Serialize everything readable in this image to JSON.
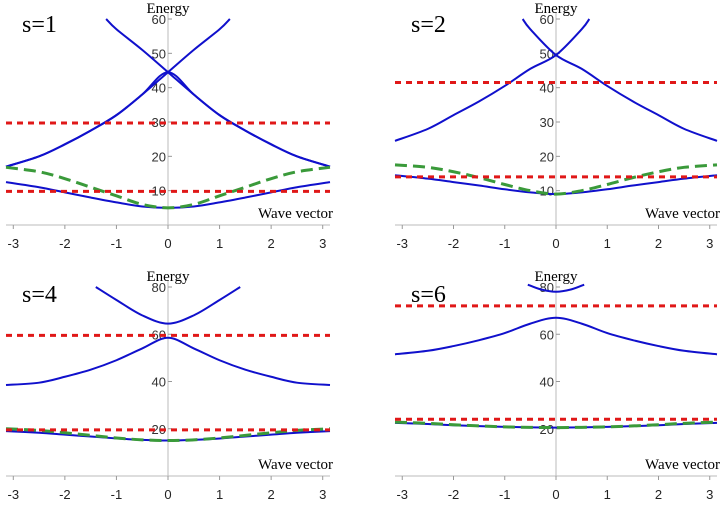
{
  "chart_data": [
    {
      "type": "line",
      "title": "s=1",
      "xlabel": "Wave vector",
      "ylabel": "Energy",
      "xlim": [
        -3.1416,
        3.1416
      ],
      "ylim": [
        0,
        60
      ],
      "x_ticks": [
        -3,
        -2,
        -1,
        0,
        1,
        2,
        3
      ],
      "y_ticks": [
        10,
        20,
        30,
        40,
        50,
        60
      ],
      "series": [
        {
          "style": "solid",
          "color": "#1010cc",
          "x": [
            -3.1416,
            -2.5,
            -2,
            -1.5,
            -1,
            -0.5,
            0,
            0.5,
            1,
            1.5,
            2,
            2.5,
            3.1416
          ],
          "y": [
            12.5,
            11,
            9.5,
            8,
            6.6,
            5.4,
            5,
            5.4,
            6.6,
            8,
            9.5,
            11,
            12.5
          ]
        },
        {
          "style": "solid",
          "color": "#1010cc",
          "x": [
            -3.1416,
            -2.5,
            -2,
            -1.5,
            -1,
            -0.5,
            0,
            0.5,
            1,
            1.5,
            2,
            2.5,
            3.1416
          ],
          "y": [
            17,
            20,
            23.5,
            27.5,
            32,
            38,
            44.5,
            38,
            32,
            27.5,
            23.5,
            20,
            17
          ]
        },
        {
          "style": "solid",
          "color": "#1010cc",
          "x": [
            -1.2,
            -1,
            -0.5,
            0,
            0.5,
            1,
            1.5,
            2,
            2.5,
            3.1416
          ],
          "y": [
            60,
            57,
            51,
            44.5,
            38,
            32,
            27.5,
            23.5,
            20,
            17
          ]
        },
        {
          "style": "solid",
          "color": "#1010cc",
          "x": [
            -3.1416,
            -2.5,
            -2,
            -1.5,
            -1,
            -0.5,
            0,
            0.5,
            1,
            1.2
          ],
          "y": [
            17,
            20,
            23.5,
            27.5,
            32,
            38,
            44.5,
            51,
            57,
            60
          ]
        },
        {
          "style": "dashed",
          "color": "#3a9a3a",
          "x": [
            -3.1416,
            -2.5,
            -2,
            -1.5,
            -1,
            -0.5,
            0,
            0.5,
            1,
            1.5,
            2,
            2.5,
            3.1416
          ],
          "y": [
            16.8,
            15.5,
            13.5,
            11,
            8.5,
            6,
            5,
            6,
            8.5,
            11,
            13.5,
            15.5,
            16.8
          ]
        },
        {
          "style": "dotted",
          "color": "#e01818",
          "x": [
            -3.1416,
            3.1416
          ],
          "y": [
            29.7,
            29.7
          ]
        },
        {
          "style": "dotted",
          "color": "#e01818",
          "x": [
            -3.1416,
            3.1416
          ],
          "y": [
            9.8,
            9.8
          ]
        }
      ]
    },
    {
      "type": "line",
      "title": "s=2",
      "xlabel": "Wave vector",
      "ylabel": "Energy",
      "xlim": [
        -3.1416,
        3.1416
      ],
      "ylim": [
        0,
        60
      ],
      "x_ticks": [
        -3,
        -2,
        -1,
        0,
        1,
        2,
        3
      ],
      "y_ticks": [
        10,
        20,
        30,
        40,
        50,
        60
      ],
      "series": [
        {
          "style": "solid",
          "color": "#1010cc",
          "x": [
            -3.1416,
            -2.5,
            -2,
            -1.5,
            -1,
            -0.5,
            0,
            0.5,
            1,
            1.5,
            2,
            2.5,
            3.1416
          ],
          "y": [
            14.5,
            13.5,
            12.5,
            11.5,
            10.4,
            9.5,
            9,
            9.5,
            10.4,
            11.5,
            12.5,
            13.5,
            14.5
          ]
        },
        {
          "style": "solid",
          "color": "#1010cc",
          "x": [
            -3.1416,
            -2.5,
            -2,
            -1.5,
            -1,
            -0.5,
            0,
            0.5,
            0.65
          ],
          "y": [
            24.5,
            28,
            32,
            36,
            40.5,
            45.5,
            49.5,
            57,
            60
          ]
        },
        {
          "style": "solid",
          "color": "#1010cc",
          "x": [
            -0.65,
            -0.5,
            0,
            0.5,
            1,
            1.5,
            2,
            2.5,
            3.1416
          ],
          "y": [
            60,
            57,
            49.5,
            45.5,
            40.5,
            36,
            32,
            28,
            24.5
          ]
        },
        {
          "style": "dashed",
          "color": "#3a9a3a",
          "x": [
            -3.1416,
            -2.5,
            -2,
            -1.5,
            -1,
            -0.5,
            0,
            0.5,
            1,
            1.5,
            2,
            2.5,
            3.1416
          ],
          "y": [
            17.5,
            16.8,
            15.5,
            13.8,
            11.8,
            10,
            9,
            10,
            11.8,
            13.8,
            15.5,
            16.8,
            17.5
          ]
        },
        {
          "style": "dotted",
          "color": "#e01818",
          "x": [
            -3.1416,
            3.1416
          ],
          "y": [
            41.5,
            41.5
          ]
        },
        {
          "style": "dotted",
          "color": "#e01818",
          "x": [
            -3.1416,
            3.1416
          ],
          "y": [
            14,
            14
          ]
        }
      ]
    },
    {
      "type": "line",
      "title": "s=4",
      "xlabel": "Wave vector",
      "ylabel": "Energy",
      "xlim": [
        -3.1416,
        3.1416
      ],
      "ylim": [
        0,
        80
      ],
      "x_ticks": [
        -3,
        -2,
        -1,
        0,
        1,
        2,
        3
      ],
      "y_ticks": [
        20,
        40,
        60,
        80
      ],
      "series": [
        {
          "style": "solid",
          "color": "#1010cc",
          "x": [
            -3.1416,
            -2.5,
            -2,
            -1.5,
            -1,
            -0.5,
            0,
            0.5,
            1,
            1.5,
            2,
            2.5,
            3.1416
          ],
          "y": [
            19,
            18.3,
            17.5,
            16.7,
            15.9,
            15.3,
            15,
            15.3,
            15.9,
            16.7,
            17.5,
            18.3,
            19
          ]
        },
        {
          "style": "solid",
          "color": "#1010cc",
          "x": [
            -3.1416,
            -2.5,
            -2,
            -1.5,
            -1,
            -0.5,
            0,
            0.5,
            1,
            1.5,
            2,
            2.5,
            3.1416
          ],
          "y": [
            38.5,
            39.5,
            42,
            45,
            49,
            54,
            58.5,
            54,
            49,
            45,
            42,
            39.5,
            38.5
          ]
        },
        {
          "style": "solid",
          "color": "#1010cc",
          "x": [
            -1.4,
            -1,
            -0.5,
            0,
            0.5,
            1,
            1.4
          ],
          "y": [
            80,
            74.5,
            68,
            64.5,
            68,
            74.5,
            80
          ]
        },
        {
          "style": "dashed",
          "color": "#3a9a3a",
          "x": [
            -3.1416,
            -2.5,
            -2,
            -1.5,
            -1,
            -0.5,
            0,
            0.5,
            1,
            1.5,
            2,
            2.5,
            3.1416
          ],
          "y": [
            20,
            19.3,
            18.3,
            17.2,
            16.1,
            15.3,
            15,
            15.3,
            16.1,
            17.2,
            18.3,
            19.3,
            20
          ]
        },
        {
          "style": "dotted",
          "color": "#e01818",
          "x": [
            -3.1416,
            3.1416
          ],
          "y": [
            59.5,
            59.5
          ]
        },
        {
          "style": "dotted",
          "color": "#e01818",
          "x": [
            -3.1416,
            3.1416
          ],
          "y": [
            19.5,
            19.5
          ]
        }
      ]
    },
    {
      "type": "line",
      "title": "s=6",
      "xlabel": "Wave vector",
      "ylabel": "Energy",
      "xlim": [
        -3.1416,
        3.1416
      ],
      "ylim": [
        0,
        80
      ],
      "x_ticks": [
        -3,
        -2,
        -1,
        0,
        1,
        2,
        3
      ],
      "y_ticks": [
        20,
        40,
        60,
        80
      ],
      "series": [
        {
          "style": "solid",
          "color": "#1010cc",
          "x": [
            -3.1416,
            -2.5,
            -2,
            -1.5,
            -1,
            -0.5,
            0,
            0.5,
            1,
            1.5,
            2,
            2.5,
            3.1416
          ],
          "y": [
            22.5,
            22,
            21.5,
            21.1,
            20.8,
            20.6,
            20.5,
            20.6,
            20.8,
            21.1,
            21.5,
            22,
            22.5
          ]
        },
        {
          "style": "solid",
          "color": "#1010cc",
          "x": [
            -3.1416,
            -2.5,
            -2,
            -1.5,
            -1,
            -0.5,
            0,
            0.5,
            1,
            1.5,
            2,
            2.5,
            3.1416
          ],
          "y": [
            51.5,
            53,
            55,
            57.5,
            60.5,
            64.5,
            67,
            64.5,
            60.5,
            57.5,
            55,
            53,
            51.5
          ]
        },
        {
          "style": "solid",
          "color": "#1010cc",
          "x": [
            -0.55,
            -0.3,
            0,
            0.3,
            0.55
          ],
          "y": [
            81,
            79,
            78,
            79,
            81
          ]
        },
        {
          "style": "dashed",
          "color": "#3a9a3a",
          "x": [
            -3.1416,
            -2.5,
            -2,
            -1.5,
            -1,
            -0.5,
            0,
            0.5,
            1,
            1.5,
            2,
            2.5,
            3.1416
          ],
          "y": [
            22.8,
            22.3,
            21.7,
            21.2,
            20.8,
            20.6,
            20.5,
            20.6,
            20.8,
            21.2,
            21.7,
            22.3,
            22.8
          ]
        },
        {
          "style": "dotted",
          "color": "#e01818",
          "x": [
            -3.1416,
            3.1416
          ],
          "y": [
            72,
            72
          ]
        },
        {
          "style": "dotted",
          "color": "#e01818",
          "x": [
            -3.1416,
            3.1416
          ],
          "y": [
            24,
            24
          ]
        }
      ]
    }
  ]
}
